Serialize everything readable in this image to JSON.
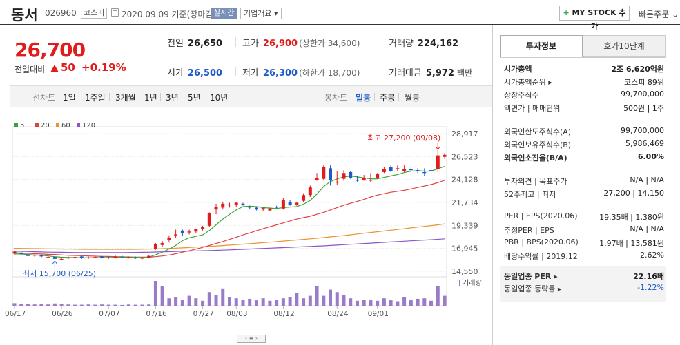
{
  "header": {
    "stock_name": "동서",
    "stock_code": "026960",
    "market_badge": "코스피",
    "date_text": "2020.09.09 기준(장마감)",
    "realtime_label": "실시간",
    "overview_label": "기업개요 ▾",
    "mystock_label": "MY STOCK 추가",
    "quick_order_label": "빠른주문 ⌄"
  },
  "price": {
    "current": "26,700",
    "change_label": "전일대비",
    "change_amount": "50",
    "change_rate": "+0.19%"
  },
  "stats": [
    {
      "label": "전일",
      "value": "26,650",
      "sub": "",
      "color": "dark"
    },
    {
      "label": "고가",
      "value": "26,900",
      "sub": "(상한가 34,600)",
      "color": "red"
    },
    {
      "label": "거래량",
      "value": "224,162",
      "sub": "",
      "color": "dark"
    },
    {
      "label": "시가",
      "value": "26,500",
      "sub": "",
      "color": "blue"
    },
    {
      "label": "저가",
      "value": "26,300",
      "sub": "(하한가 18,700)",
      "color": "blue"
    },
    {
      "label": "거래대금",
      "value": "5,972",
      "sub": "백만",
      "color": "dark"
    }
  ],
  "period_tabs": {
    "line_label": "선차트",
    "line_items": [
      "1일",
      "1주일",
      "3개월",
      "1년",
      "3년",
      "5년",
      "10년"
    ],
    "candle_label": "봉차트",
    "candle_items": [
      "일봉",
      "주봉",
      "월봉"
    ],
    "active_candle": "일봉"
  },
  "chart_data": {
    "type": "candlestick",
    "legend": [
      "5",
      "20",
      "60",
      "120"
    ],
    "legend_colors": [
      "#3aa537",
      "#e24141",
      "#e8952c",
      "#8a57c9"
    ],
    "y_ticks": [
      "28,917",
      "26,523",
      "24,128",
      "21,734",
      "19,339",
      "16,945",
      "14,550"
    ],
    "ylim": [
      14550,
      28917
    ],
    "x_labels": [
      "06/17",
      "06/26",
      "07/07",
      "07/16",
      "07/27",
      "08/03",
      "08/12",
      "08/24",
      "09/01"
    ],
    "x_label_index": [
      0,
      7,
      14,
      21,
      28,
      33,
      40,
      48,
      54
    ],
    "high_annotation": "최고 27,200 (09/08)",
    "low_annotation": "최저 15,700 (06/25)",
    "volume_label": "거래량",
    "candles": [
      {
        "o": 16400,
        "c": 16600,
        "h": 16650,
        "l": 16300
      },
      {
        "o": 16500,
        "c": 16350,
        "h": 16600,
        "l": 16250
      },
      {
        "o": 16300,
        "c": 16150,
        "h": 16400,
        "l": 16050
      },
      {
        "o": 16200,
        "c": 16250,
        "h": 16350,
        "l": 16050
      },
      {
        "o": 16200,
        "c": 16100,
        "h": 16300,
        "l": 16000
      },
      {
        "o": 16050,
        "c": 16050,
        "h": 16150,
        "l": 15950
      },
      {
        "o": 16050,
        "c": 15850,
        "h": 16100,
        "l": 15700
      },
      {
        "o": 15850,
        "c": 15850,
        "h": 16000,
        "l": 15750
      },
      {
        "o": 15900,
        "c": 16000,
        "h": 16100,
        "l": 15850
      },
      {
        "o": 16000,
        "c": 16050,
        "h": 16150,
        "l": 15900
      },
      {
        "o": 16100,
        "c": 15950,
        "h": 16150,
        "l": 15850
      },
      {
        "o": 15950,
        "c": 16000,
        "h": 16100,
        "l": 15850
      },
      {
        "o": 16000,
        "c": 16050,
        "h": 16150,
        "l": 15900
      },
      {
        "o": 16100,
        "c": 16000,
        "h": 16150,
        "l": 15900
      },
      {
        "o": 16000,
        "c": 15950,
        "h": 16100,
        "l": 15850
      },
      {
        "o": 15950,
        "c": 16100,
        "h": 16200,
        "l": 15900
      },
      {
        "o": 16100,
        "c": 16050,
        "h": 16200,
        "l": 15950
      },
      {
        "o": 16000,
        "c": 16050,
        "h": 16100,
        "l": 15900
      },
      {
        "o": 16000,
        "c": 15900,
        "h": 16100,
        "l": 15850
      },
      {
        "o": 15950,
        "c": 15950,
        "h": 16050,
        "l": 15800
      },
      {
        "o": 15950,
        "c": 16150,
        "h": 16250,
        "l": 15900
      },
      {
        "o": 16900,
        "c": 17350,
        "h": 17500,
        "l": 16800
      },
      {
        "o": 17300,
        "c": 17500,
        "h": 17700,
        "l": 17100
      },
      {
        "o": 17800,
        "c": 18000,
        "h": 18300,
        "l": 17600
      },
      {
        "o": 18300,
        "c": 18400,
        "h": 18900,
        "l": 18000
      },
      {
        "o": 18800,
        "c": 18500,
        "h": 18900,
        "l": 18200
      },
      {
        "o": 18600,
        "c": 18700,
        "h": 18900,
        "l": 18400
      },
      {
        "o": 18700,
        "c": 18950,
        "h": 19000,
        "l": 18500
      },
      {
        "o": 19000,
        "c": 19150,
        "h": 19300,
        "l": 18800
      },
      {
        "o": 19300,
        "c": 20600,
        "h": 20700,
        "l": 19200
      },
      {
        "o": 21000,
        "c": 21300,
        "h": 21600,
        "l": 20500
      },
      {
        "o": 21200,
        "c": 21600,
        "h": 21800,
        "l": 21000
      },
      {
        "o": 21500,
        "c": 21500,
        "h": 21700,
        "l": 21200
      },
      {
        "o": 21500,
        "c": 21700,
        "h": 21800,
        "l": 21300
      },
      {
        "o": 21600,
        "c": 21500,
        "h": 21700,
        "l": 21400
      },
      {
        "o": 21300,
        "c": 21200,
        "h": 21400,
        "l": 21000
      },
      {
        "o": 21200,
        "c": 21000,
        "h": 21300,
        "l": 20900
      },
      {
        "o": 21000,
        "c": 21150,
        "h": 21200,
        "l": 20800
      },
      {
        "o": 20900,
        "c": 21100,
        "h": 21200,
        "l": 20800
      },
      {
        "o": 21300,
        "c": 21200,
        "h": 21400,
        "l": 21100
      },
      {
        "o": 21100,
        "c": 22000,
        "h": 22200,
        "l": 21000
      },
      {
        "o": 21800,
        "c": 21500,
        "h": 22000,
        "l": 21400
      },
      {
        "o": 21500,
        "c": 21700,
        "h": 21800,
        "l": 21400
      },
      {
        "o": 21900,
        "c": 22500,
        "h": 22700,
        "l": 21800
      },
      {
        "o": 22500,
        "c": 23300,
        "h": 23500,
        "l": 22300
      },
      {
        "o": 24100,
        "c": 24300,
        "h": 24800,
        "l": 24000
      },
      {
        "o": 24200,
        "c": 25400,
        "h": 25600,
        "l": 24100
      },
      {
        "o": 25300,
        "c": 24100,
        "h": 25600,
        "l": 23500
      },
      {
        "o": 23800,
        "c": 23900,
        "h": 25000,
        "l": 23600
      },
      {
        "o": 24200,
        "c": 24800,
        "h": 25100,
        "l": 24000
      },
      {
        "o": 24900,
        "c": 24300,
        "h": 25000,
        "l": 24200
      },
      {
        "o": 24100,
        "c": 24000,
        "h": 24500,
        "l": 23900
      },
      {
        "o": 24100,
        "c": 24300,
        "h": 24600,
        "l": 24000
      },
      {
        "o": 24000,
        "c": 24100,
        "h": 24800,
        "l": 23800
      },
      {
        "o": 24300,
        "c": 24700,
        "h": 24800,
        "l": 24200
      },
      {
        "o": 24900,
        "c": 25200,
        "h": 25400,
        "l": 24800
      },
      {
        "o": 25400,
        "c": 25000,
        "h": 25600,
        "l": 24900
      },
      {
        "o": 25200,
        "c": 25300,
        "h": 25600,
        "l": 25000
      },
      {
        "o": 25000,
        "c": 25200,
        "h": 25600,
        "l": 24900
      },
      {
        "o": 25200,
        "c": 25100,
        "h": 25400,
        "l": 24900
      },
      {
        "o": 25100,
        "c": 25000,
        "h": 25300,
        "l": 24800
      },
      {
        "o": 24900,
        "c": 24800,
        "h": 25300,
        "l": 24500
      },
      {
        "o": 25100,
        "c": 25000,
        "h": 25300,
        "l": 24600
      },
      {
        "o": 25200,
        "c": 26650,
        "h": 27200,
        "l": 24900
      },
      {
        "o": 26500,
        "c": 26700,
        "h": 26900,
        "l": 26300
      }
    ],
    "ma5": [
      16350,
      16350,
      16300,
      16250,
      16220,
      16150,
      16080,
      16020,
      16000,
      15980,
      15960,
      15960,
      15980,
      15990,
      16000,
      16000,
      16010,
      16020,
      16010,
      16000,
      16020,
      16280,
      16550,
      16880,
      17250,
      17750,
      18050,
      18200,
      18350,
      18800,
      19400,
      20000,
      20500,
      20950,
      21300,
      21350,
      21300,
      21200,
      21150,
      21100,
      21200,
      21250,
      21300,
      21550,
      21950,
      22600,
      23400,
      23900,
      24200,
      24400,
      24500,
      24400,
      24300,
      24200,
      24200,
      24350,
      24500,
      24650,
      24850,
      25000,
      25050,
      25000,
      25000,
      25250,
      25500
    ],
    "ma20": [
      16500,
      16450,
      16420,
      16380,
      16350,
      16320,
      16300,
      16260,
      16220,
      16200,
      16180,
      16150,
      16130,
      16110,
      16100,
      16080,
      16060,
      16050,
      16040,
      16030,
      16030,
      16080,
      16150,
      16250,
      16380,
      16550,
      16700,
      16870,
      17050,
      17250,
      17450,
      17650,
      17880,
      18100,
      18350,
      18550,
      18780,
      19000,
      19200,
      19400,
      19600,
      19800,
      20000,
      20150,
      20300,
      20500,
      20700,
      20950,
      21200,
      21450,
      21650,
      21850,
      22050,
      22300,
      22500,
      22650,
      22800,
      22900,
      23000,
      23150,
      23300,
      23450,
      23600,
      23800,
      24050
    ],
    "ma60": [
      16950,
      16940,
      16930,
      16920,
      16910,
      16900,
      16890,
      16880,
      16870,
      16860,
      16850,
      16850,
      16850,
      16850,
      16850,
      16850,
      16850,
      16850,
      16850,
      16860,
      16870,
      16890,
      16910,
      16940,
      16970,
      17000,
      17040,
      17080,
      17120,
      17160,
      17200,
      17240,
      17290,
      17340,
      17390,
      17440,
      17490,
      17540,
      17590,
      17640,
      17700,
      17760,
      17820,
      17880,
      17940,
      18000,
      18070,
      18140,
      18210,
      18280,
      18360,
      18440,
      18520,
      18600,
      18680,
      18760,
      18840,
      18920,
      19000,
      19080,
      19160,
      19240,
      19320,
      19400,
      19500
    ],
    "ma120": [
      16650,
      16630,
      16610,
      16590,
      16570,
      16550,
      16540,
      16530,
      16520,
      16510,
      16500,
      16500,
      16500,
      16500,
      16500,
      16500,
      16500,
      16510,
      16520,
      16530,
      16540,
      16560,
      16580,
      16600,
      16620,
      16640,
      16660,
      16680,
      16700,
      16720,
      16740,
      16760,
      16790,
      16820,
      16850,
      16880,
      16910,
      16940,
      16970,
      17000,
      17030,
      17060,
      17090,
      17120,
      17150,
      17180,
      17210,
      17250,
      17290,
      17330,
      17370,
      17410,
      17450,
      17490,
      17530,
      17570,
      17610,
      17650,
      17690,
      17730,
      17770,
      17810,
      17850,
      17890,
      17940
    ],
    "volume": [
      10,
      8,
      7,
      5,
      6,
      5,
      9,
      6,
      5,
      4,
      4,
      5,
      4,
      5,
      4,
      4,
      3,
      5,
      4,
      4,
      5,
      100,
      80,
      30,
      35,
      25,
      40,
      30,
      20,
      55,
      42,
      70,
      35,
      30,
      25,
      28,
      22,
      30,
      20,
      25,
      30,
      35,
      50,
      30,
      40,
      80,
      40,
      65,
      55,
      42,
      30,
      20,
      25,
      22,
      20,
      30,
      22,
      18,
      35,
      22,
      28,
      30,
      20,
      80,
      40
    ],
    "volume_max": 100
  },
  "right_panel": {
    "tab_active": "투자정보",
    "tab_other": "호가10단계",
    "group1": [
      {
        "k": "시가총액",
        "v": "2조 6,620억원",
        "bold": true
      },
      {
        "k": "시가총액순위 ▸",
        "v": "코스피 89위",
        "bold": false
      },
      {
        "k": "상장주식수",
        "v": "99,700,000",
        "bold": false
      },
      {
        "k": "액면가 | 매매단위",
        "v": "500원 | 1주",
        "bold": false
      }
    ],
    "group2": [
      {
        "k": "외국인한도주식수(A)",
        "v": "99,700,000",
        "bold": false
      },
      {
        "k": "외국인보유주식수(B)",
        "v": "5,986,469",
        "bold": false
      },
      {
        "k": "외국인소진율(B/A)",
        "v": "6.00%",
        "bold": true
      }
    ],
    "group3": [
      {
        "k": "투자의견 | 목표주가",
        "v": "N/A | N/A",
        "bold": false
      },
      {
        "k": "52주최고 | 최저",
        "v": "27,200 | 14,150",
        "bold": false
      }
    ],
    "group4": [
      {
        "k": "PER | EPS(2020.06)",
        "v": "19.35배 | 1,380원",
        "bold": false
      },
      {
        "k": "추정PER | EPS",
        "v": "N/A | N/A",
        "bold": false
      },
      {
        "k": "PBR | BPS(2020.06)",
        "v": "1.97배 | 13,581원",
        "bold": false
      },
      {
        "k": "배당수익률 | 2019.12",
        "v": "2.62%",
        "bold": false
      }
    ],
    "group5": [
      {
        "k": "동일업종 PER ▸",
        "v": "22.16배",
        "bold": true
      },
      {
        "k": "동일업종 등락률 ▸",
        "v": "-1.22%",
        "bold": false,
        "blue": true
      }
    ]
  }
}
